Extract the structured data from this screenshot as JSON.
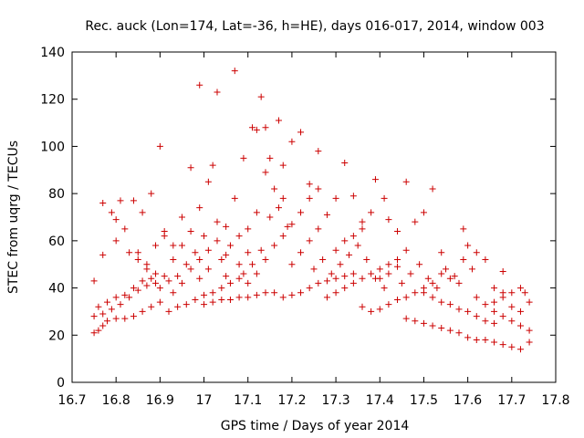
{
  "chart_data": {
    "type": "scatter",
    "title": "Rec. auck (Lon=174, Lat=-36, h=HE), days 016-017, 2014, window 003",
    "xlabel": "GPS time / Days of year 2014",
    "ylabel": "STEC from uqrg / TECUs",
    "xlim": [
      16.7,
      17.8
    ],
    "ylim": [
      0,
      140
    ],
    "x_ticks": [
      "16.7",
      "16.8",
      "16.9",
      "17",
      "17.1",
      "17.2",
      "17.3",
      "17.4",
      "17.5",
      "17.6",
      "17.7",
      "17.8"
    ],
    "y_ticks": [
      "0",
      "20",
      "40",
      "60",
      "80",
      "100",
      "120",
      "140"
    ],
    "grid": false,
    "legend": "none",
    "marker": "plus",
    "marker_color": "#cc0000",
    "series": [
      {
        "points": [
          [
            16.75,
            21
          ],
          [
            16.76,
            22
          ],
          [
            16.77,
            24
          ],
          [
            16.78,
            26
          ],
          [
            16.8,
            27
          ],
          [
            16.82,
            27
          ],
          [
            16.84,
            28
          ],
          [
            16.86,
            30
          ],
          [
            16.88,
            32
          ],
          [
            16.9,
            34
          ],
          [
            16.75,
            28
          ],
          [
            16.77,
            29
          ],
          [
            16.79,
            31
          ],
          [
            16.81,
            33
          ],
          [
            16.83,
            36
          ],
          [
            16.85,
            39
          ],
          [
            16.87,
            41
          ],
          [
            16.89,
            42
          ],
          [
            16.76,
            32
          ],
          [
            16.78,
            34
          ],
          [
            16.8,
            36
          ],
          [
            16.82,
            37
          ],
          [
            16.84,
            40
          ],
          [
            16.86,
            43
          ],
          [
            16.88,
            44
          ],
          [
            16.75,
            43
          ],
          [
            16.77,
            54
          ],
          [
            16.8,
            60
          ],
          [
            16.82,
            65
          ],
          [
            16.84,
            77
          ],
          [
            16.86,
            72
          ],
          [
            16.88,
            80
          ],
          [
            16.9,
            100
          ],
          [
            16.77,
            76
          ],
          [
            16.79,
            72
          ],
          [
            16.8,
            69
          ],
          [
            16.81,
            77
          ],
          [
            16.83,
            55
          ],
          [
            16.85,
            52
          ],
          [
            16.87,
            48
          ],
          [
            16.89,
            46
          ],
          [
            16.91,
            45
          ],
          [
            16.9,
            40
          ],
          [
            16.92,
            43
          ],
          [
            16.94,
            45
          ],
          [
            16.96,
            50
          ],
          [
            16.98,
            55
          ],
          [
            16.99,
            126
          ],
          [
            17.0,
            62
          ],
          [
            17.02,
            92
          ],
          [
            17.03,
            123
          ],
          [
            17.05,
            45
          ],
          [
            16.92,
            30
          ],
          [
            16.94,
            32
          ],
          [
            16.96,
            33
          ],
          [
            16.98,
            35
          ],
          [
            17.0,
            37
          ],
          [
            17.02,
            38
          ],
          [
            17.04,
            40
          ],
          [
            17.06,
            42
          ],
          [
            17.08,
            44
          ],
          [
            16.93,
            38
          ],
          [
            16.95,
            42
          ],
          [
            16.97,
            48
          ],
          [
            16.99,
            52
          ],
          [
            17.01,
            56
          ],
          [
            17.03,
            60
          ],
          [
            17.05,
            66
          ],
          [
            17.07,
            132
          ],
          [
            17.09,
            95
          ],
          [
            16.91,
            64
          ],
          [
            16.93,
            58
          ],
          [
            16.95,
            70
          ],
          [
            16.97,
            91
          ],
          [
            16.99,
            74
          ],
          [
            17.01,
            85
          ],
          [
            17.03,
            68
          ],
          [
            17.05,
            54
          ],
          [
            17.07,
            78
          ],
          [
            17.0,
            33
          ],
          [
            17.02,
            34
          ],
          [
            17.04,
            35
          ],
          [
            17.06,
            35
          ],
          [
            17.08,
            36
          ],
          [
            17.1,
            36
          ],
          [
            17.12,
            37
          ],
          [
            17.14,
            38
          ],
          [
            17.16,
            38
          ],
          [
            17.08,
            50
          ],
          [
            17.1,
            55
          ],
          [
            17.11,
            108
          ],
          [
            17.12,
            107
          ],
          [
            17.13,
            121
          ],
          [
            17.14,
            108
          ],
          [
            17.15,
            95
          ],
          [
            17.17,
            111
          ],
          [
            17.18,
            92
          ],
          [
            17.1,
            65
          ],
          [
            17.12,
            72
          ],
          [
            17.14,
            89
          ],
          [
            17.16,
            82
          ],
          [
            17.18,
            78
          ],
          [
            17.2,
            102
          ],
          [
            17.22,
            106
          ],
          [
            17.24,
            84
          ],
          [
            17.26,
            98
          ],
          [
            17.1,
            42
          ],
          [
            17.12,
            46
          ],
          [
            17.14,
            52
          ],
          [
            17.16,
            58
          ],
          [
            17.18,
            62
          ],
          [
            17.2,
            67
          ],
          [
            17.22,
            72
          ],
          [
            17.24,
            78
          ],
          [
            17.26,
            82
          ],
          [
            17.18,
            36
          ],
          [
            17.2,
            37
          ],
          [
            17.22,
            38
          ],
          [
            17.24,
            40
          ],
          [
            17.26,
            42
          ],
          [
            17.28,
            43
          ],
          [
            17.3,
            44
          ],
          [
            17.32,
            45
          ],
          [
            17.34,
            46
          ],
          [
            17.2,
            50
          ],
          [
            17.22,
            55
          ],
          [
            17.24,
            60
          ],
          [
            17.26,
            65
          ],
          [
            17.28,
            71
          ],
          [
            17.3,
            78
          ],
          [
            17.32,
            93
          ],
          [
            17.34,
            79
          ],
          [
            17.36,
            65
          ],
          [
            17.28,
            36
          ],
          [
            17.3,
            38
          ],
          [
            17.32,
            40
          ],
          [
            17.34,
            42
          ],
          [
            17.36,
            44
          ],
          [
            17.38,
            46
          ],
          [
            17.4,
            48
          ],
          [
            17.42,
            50
          ],
          [
            17.44,
            52
          ],
          [
            17.3,
            56
          ],
          [
            17.32,
            60
          ],
          [
            17.34,
            62
          ],
          [
            17.36,
            68
          ],
          [
            17.38,
            72
          ],
          [
            17.39,
            86
          ],
          [
            17.41,
            78
          ],
          [
            17.42,
            69
          ],
          [
            17.44,
            64
          ],
          [
            17.36,
            32
          ],
          [
            17.38,
            30
          ],
          [
            17.4,
            31
          ],
          [
            17.42,
            33
          ],
          [
            17.44,
            35
          ],
          [
            17.46,
            36
          ],
          [
            17.48,
            38
          ],
          [
            17.5,
            40
          ],
          [
            17.52,
            42
          ],
          [
            17.4,
            44
          ],
          [
            17.42,
            46
          ],
          [
            17.44,
            49
          ],
          [
            17.46,
            56
          ],
          [
            17.46,
            85
          ],
          [
            17.48,
            68
          ],
          [
            17.5,
            72
          ],
          [
            17.52,
            82
          ],
          [
            17.54,
            55
          ],
          [
            17.46,
            27
          ],
          [
            17.48,
            26
          ],
          [
            17.5,
            25
          ],
          [
            17.52,
            24
          ],
          [
            17.54,
            23
          ],
          [
            17.56,
            22
          ],
          [
            17.58,
            21
          ],
          [
            17.6,
            19
          ],
          [
            17.62,
            18
          ],
          [
            17.5,
            38
          ],
          [
            17.52,
            36
          ],
          [
            17.54,
            34
          ],
          [
            17.56,
            33
          ],
          [
            17.58,
            31
          ],
          [
            17.6,
            30
          ],
          [
            17.62,
            28
          ],
          [
            17.64,
            26
          ],
          [
            17.66,
            25
          ],
          [
            17.54,
            46
          ],
          [
            17.56,
            44
          ],
          [
            17.58,
            42
          ],
          [
            17.59,
            65
          ],
          [
            17.6,
            58
          ],
          [
            17.62,
            55
          ],
          [
            17.64,
            52
          ],
          [
            17.66,
            40
          ],
          [
            17.68,
            38
          ],
          [
            17.62,
            36
          ],
          [
            17.64,
            33
          ],
          [
            17.66,
            30
          ],
          [
            17.68,
            28
          ],
          [
            17.7,
            26
          ],
          [
            17.72,
            24
          ],
          [
            17.74,
            22
          ],
          [
            17.64,
            18
          ],
          [
            17.66,
            17
          ],
          [
            17.68,
            16
          ],
          [
            17.7,
            15
          ],
          [
            17.72,
            14
          ],
          [
            17.74,
            17
          ],
          [
            17.66,
            34
          ],
          [
            17.68,
            36
          ],
          [
            17.7,
            38
          ],
          [
            17.72,
            40
          ],
          [
            17.73,
            38
          ],
          [
            17.74,
            34
          ],
          [
            17.72,
            30
          ],
          [
            17.7,
            32
          ],
          [
            17.68,
            47
          ],
          [
            16.85,
            55
          ],
          [
            16.87,
            50
          ],
          [
            16.89,
            58
          ],
          [
            16.91,
            62
          ],
          [
            16.93,
            52
          ],
          [
            16.95,
            58
          ],
          [
            16.97,
            64
          ],
          [
            16.99,
            44
          ],
          [
            17.01,
            48
          ],
          [
            17.04,
            52
          ],
          [
            17.06,
            58
          ],
          [
            17.08,
            62
          ],
          [
            17.09,
            46
          ],
          [
            17.11,
            50
          ],
          [
            17.13,
            56
          ],
          [
            17.15,
            70
          ],
          [
            17.17,
            74
          ],
          [
            17.19,
            66
          ],
          [
            17.25,
            48
          ],
          [
            17.27,
            52
          ],
          [
            17.29,
            46
          ],
          [
            17.31,
            50
          ],
          [
            17.33,
            54
          ],
          [
            17.35,
            58
          ],
          [
            17.37,
            52
          ],
          [
            17.39,
            44
          ],
          [
            17.41,
            40
          ],
          [
            17.45,
            42
          ],
          [
            17.47,
            46
          ],
          [
            17.49,
            50
          ],
          [
            17.51,
            44
          ],
          [
            17.53,
            40
          ],
          [
            17.55,
            48
          ],
          [
            17.57,
            45
          ],
          [
            17.59,
            52
          ],
          [
            17.61,
            48
          ]
        ]
      }
    ]
  }
}
